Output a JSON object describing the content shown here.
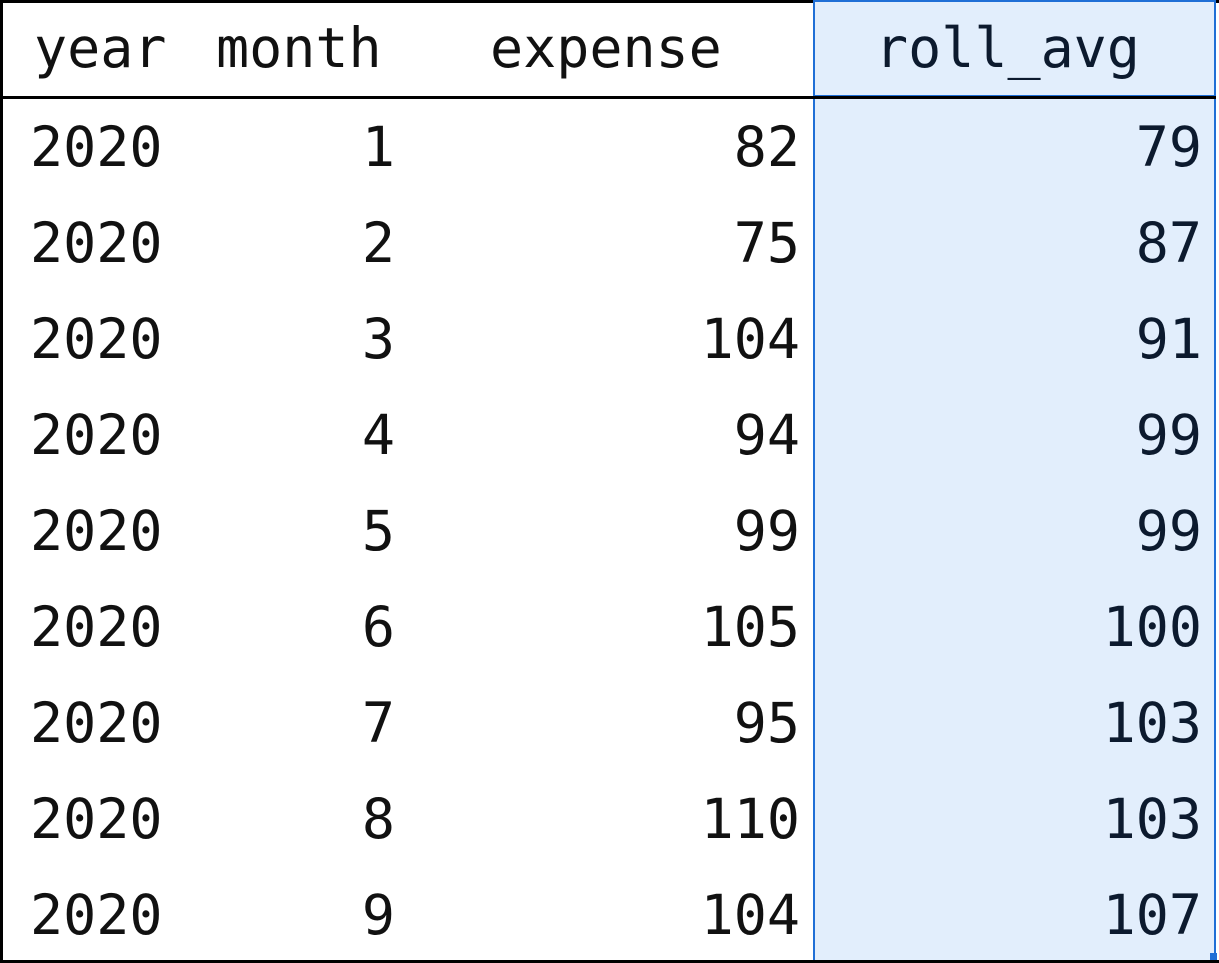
{
  "table": {
    "columns": [
      "year",
      "month",
      "expense",
      "roll_avg"
    ],
    "selected_column": "roll_avg",
    "rows": [
      {
        "year": "2020",
        "month": "1",
        "expense": "82",
        "roll_avg": "79"
      },
      {
        "year": "2020",
        "month": "2",
        "expense": "75",
        "roll_avg": "87"
      },
      {
        "year": "2020",
        "month": "3",
        "expense": "104",
        "roll_avg": "91"
      },
      {
        "year": "2020",
        "month": "4",
        "expense": "94",
        "roll_avg": "99"
      },
      {
        "year": "2020",
        "month": "5",
        "expense": "99",
        "roll_avg": "99"
      },
      {
        "year": "2020",
        "month": "6",
        "expense": "105",
        "roll_avg": "100"
      },
      {
        "year": "2020",
        "month": "7",
        "expense": "95",
        "roll_avg": "103"
      },
      {
        "year": "2020",
        "month": "8",
        "expense": "110",
        "roll_avg": "103"
      },
      {
        "year": "2020",
        "month": "9",
        "expense": "104",
        "roll_avg": "107"
      }
    ]
  },
  "colors": {
    "selection_fill": "#e2eefc",
    "selection_border": "#1f6fd6"
  }
}
